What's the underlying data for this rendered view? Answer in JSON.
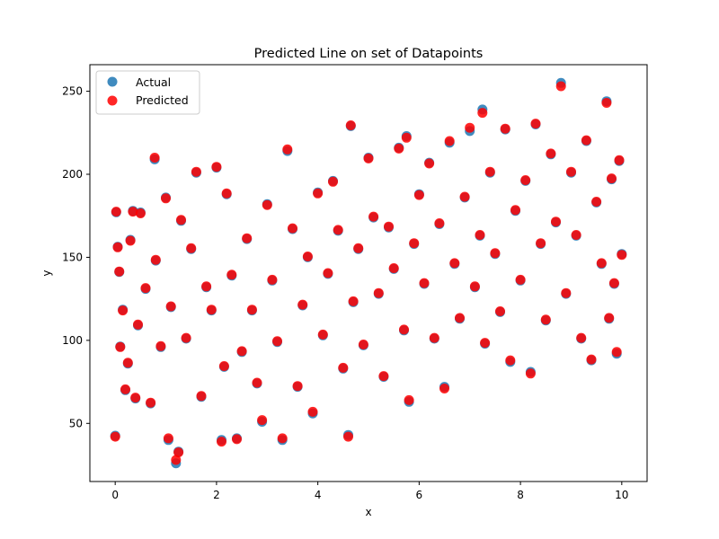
{
  "chart_data": {
    "type": "scatter",
    "title": "Predicted Line on set of Datapoints",
    "xlabel": "x",
    "ylabel": "y",
    "xlim": [
      -0.5,
      10.5
    ],
    "ylim": [
      15,
      266
    ],
    "x_ticks": [
      0,
      2,
      4,
      6,
      8,
      10
    ],
    "y_ticks": [
      50,
      100,
      150,
      200,
      250
    ],
    "grid": false,
    "legend_position": "top-left",
    "series": [
      {
        "name": "Actual",
        "color": "#1f77b4",
        "alpha": 0.85,
        "points": [
          [
            0.0,
            42.6
          ],
          [
            0.02,
            177.1
          ],
          [
            0.05,
            156.4
          ],
          [
            0.08,
            141.2
          ],
          [
            0.1,
            96.3
          ],
          [
            0.15,
            118.5
          ],
          [
            0.2,
            70.0
          ],
          [
            0.25,
            86.0
          ],
          [
            0.3,
            160.5
          ],
          [
            0.35,
            178.0
          ],
          [
            0.4,
            65.0
          ],
          [
            0.45,
            109.0
          ],
          [
            0.5,
            177.0
          ],
          [
            0.6,
            131.0
          ],
          [
            0.7,
            62.0
          ],
          [
            0.78,
            209.0
          ],
          [
            0.8,
            148.0
          ],
          [
            0.9,
            96.0
          ],
          [
            1.0,
            186.0
          ],
          [
            1.05,
            40.0
          ],
          [
            1.1,
            120.0
          ],
          [
            1.2,
            26.0
          ],
          [
            1.25,
            33.0
          ],
          [
            1.3,
            172.0
          ],
          [
            1.4,
            101.0
          ],
          [
            1.5,
            155.0
          ],
          [
            1.6,
            201.0
          ],
          [
            1.7,
            66.0
          ],
          [
            1.8,
            132.0
          ],
          [
            1.9,
            118.0
          ],
          [
            2.0,
            204.0
          ],
          [
            2.1,
            40.0
          ],
          [
            2.15,
            84.0
          ],
          [
            2.2,
            188.0
          ],
          [
            2.3,
            139.0
          ],
          [
            2.4,
            41.0
          ],
          [
            2.5,
            93.0
          ],
          [
            2.6,
            161.0
          ],
          [
            2.7,
            118.0
          ],
          [
            2.8,
            74.0
          ],
          [
            2.9,
            51.0
          ],
          [
            3.0,
            182.0
          ],
          [
            3.1,
            136.0
          ],
          [
            3.2,
            99.0
          ],
          [
            3.3,
            40.0
          ],
          [
            3.4,
            214.0
          ],
          [
            3.5,
            167.0
          ],
          [
            3.6,
            72.0
          ],
          [
            3.7,
            121.0
          ],
          [
            3.8,
            150.0
          ],
          [
            3.9,
            56.0
          ],
          [
            4.0,
            189.0
          ],
          [
            4.1,
            103.0
          ],
          [
            4.2,
            140.0
          ],
          [
            4.3,
            196.0
          ],
          [
            4.4,
            166.0
          ],
          [
            4.5,
            83.0
          ],
          [
            4.6,
            43.0
          ],
          [
            4.65,
            229.0
          ],
          [
            4.7,
            123.0
          ],
          [
            4.8,
            155.0
          ],
          [
            4.9,
            97.0
          ],
          [
            5.0,
            210.0
          ],
          [
            5.1,
            174.0
          ],
          [
            5.2,
            128.0
          ],
          [
            5.3,
            78.0
          ],
          [
            5.4,
            168.0
          ],
          [
            5.5,
            143.0
          ],
          [
            5.6,
            216.0
          ],
          [
            5.7,
            106.0
          ],
          [
            5.75,
            223.0
          ],
          [
            5.8,
            63.0
          ],
          [
            5.9,
            158.0
          ],
          [
            6.0,
            188.0
          ],
          [
            6.1,
            134.0
          ],
          [
            6.2,
            207.0
          ],
          [
            6.3,
            101.0
          ],
          [
            6.4,
            170.0
          ],
          [
            6.5,
            72.0
          ],
          [
            6.6,
            219.0
          ],
          [
            6.7,
            146.0
          ],
          [
            6.8,
            113.0
          ],
          [
            6.9,
            186.0
          ],
          [
            7.0,
            226.0
          ],
          [
            7.1,
            132.0
          ],
          [
            7.2,
            163.0
          ],
          [
            7.25,
            239.0
          ],
          [
            7.3,
            98.0
          ],
          [
            7.4,
            201.0
          ],
          [
            7.5,
            152.0
          ],
          [
            7.6,
            117.0
          ],
          [
            7.7,
            227.0
          ],
          [
            7.8,
            87.0
          ],
          [
            7.9,
            178.0
          ],
          [
            8.0,
            136.0
          ],
          [
            8.1,
            196.0
          ],
          [
            8.2,
            81.0
          ],
          [
            8.3,
            230.0
          ],
          [
            8.4,
            158.0
          ],
          [
            8.5,
            112.0
          ],
          [
            8.6,
            212.0
          ],
          [
            8.7,
            171.0
          ],
          [
            8.8,
            255.0
          ],
          [
            8.9,
            128.0
          ],
          [
            9.0,
            201.0
          ],
          [
            9.1,
            163.0
          ],
          [
            9.2,
            101.0
          ],
          [
            9.3,
            220.0
          ],
          [
            9.4,
            88.0
          ],
          [
            9.5,
            183.0
          ],
          [
            9.6,
            146.0
          ],
          [
            9.7,
            244.0
          ],
          [
            9.75,
            113.0
          ],
          [
            9.8,
            197.0
          ],
          [
            9.85,
            134.0
          ],
          [
            9.9,
            92.0
          ],
          [
            9.95,
            208.0
          ],
          [
            10.0,
            152.0
          ]
        ]
      },
      {
        "name": "Predicted",
        "color": "#ff0000",
        "alpha": 0.85,
        "points": [
          [
            0.0,
            42.0
          ],
          [
            0.02,
            177.5
          ],
          [
            0.05,
            156.0
          ],
          [
            0.08,
            141.5
          ],
          [
            0.1,
            96.0
          ],
          [
            0.15,
            118.0
          ],
          [
            0.2,
            70.5
          ],
          [
            0.25,
            86.5
          ],
          [
            0.3,
            160.0
          ],
          [
            0.35,
            177.5
          ],
          [
            0.4,
            65.5
          ],
          [
            0.45,
            109.5
          ],
          [
            0.5,
            176.5
          ],
          [
            0.6,
            131.5
          ],
          [
            0.7,
            62.5
          ],
          [
            0.78,
            210.0
          ],
          [
            0.8,
            148.5
          ],
          [
            0.9,
            96.5
          ],
          [
            1.0,
            185.5
          ],
          [
            1.05,
            41.0
          ],
          [
            1.1,
            120.5
          ],
          [
            1.2,
            28.0
          ],
          [
            1.25,
            32.5
          ],
          [
            1.3,
            172.5
          ],
          [
            1.4,
            101.5
          ],
          [
            1.5,
            155.5
          ],
          [
            1.6,
            201.5
          ],
          [
            1.7,
            66.5
          ],
          [
            1.8,
            132.5
          ],
          [
            1.9,
            118.5
          ],
          [
            2.0,
            204.5
          ],
          [
            2.1,
            39.0
          ],
          [
            2.15,
            84.5
          ],
          [
            2.2,
            188.5
          ],
          [
            2.3,
            139.5
          ],
          [
            2.4,
            40.5
          ],
          [
            2.5,
            93.5
          ],
          [
            2.6,
            161.5
          ],
          [
            2.7,
            118.5
          ],
          [
            2.8,
            74.5
          ],
          [
            2.9,
            52.0
          ],
          [
            3.0,
            181.5
          ],
          [
            3.1,
            136.5
          ],
          [
            3.2,
            99.5
          ],
          [
            3.3,
            41.0
          ],
          [
            3.4,
            215.0
          ],
          [
            3.5,
            167.5
          ],
          [
            3.6,
            72.5
          ],
          [
            3.7,
            121.5
          ],
          [
            3.8,
            150.5
          ],
          [
            3.9,
            57.0
          ],
          [
            4.0,
            188.5
          ],
          [
            4.1,
            103.5
          ],
          [
            4.2,
            140.5
          ],
          [
            4.3,
            195.5
          ],
          [
            4.4,
            166.5
          ],
          [
            4.5,
            83.5
          ],
          [
            4.6,
            42.0
          ],
          [
            4.65,
            229.5
          ],
          [
            4.7,
            123.5
          ],
          [
            4.8,
            155.5
          ],
          [
            4.9,
            97.5
          ],
          [
            5.0,
            209.5
          ],
          [
            5.1,
            174.5
          ],
          [
            5.2,
            128.5
          ],
          [
            5.3,
            78.5
          ],
          [
            5.4,
            168.5
          ],
          [
            5.5,
            143.5
          ],
          [
            5.6,
            215.5
          ],
          [
            5.7,
            106.5
          ],
          [
            5.75,
            222.0
          ],
          [
            5.8,
            64.0
          ],
          [
            5.9,
            158.5
          ],
          [
            6.0,
            187.5
          ],
          [
            6.1,
            134.5
          ],
          [
            6.2,
            206.5
          ],
          [
            6.3,
            101.5
          ],
          [
            6.4,
            170.5
          ],
          [
            6.5,
            71.0
          ],
          [
            6.6,
            220.0
          ],
          [
            6.7,
            146.5
          ],
          [
            6.8,
            113.5
          ],
          [
            6.9,
            186.5
          ],
          [
            7.0,
            228.0
          ],
          [
            7.1,
            132.5
          ],
          [
            7.2,
            163.5
          ],
          [
            7.25,
            237.0
          ],
          [
            7.3,
            98.5
          ],
          [
            7.4,
            201.5
          ],
          [
            7.5,
            152.5
          ],
          [
            7.6,
            117.5
          ],
          [
            7.7,
            227.5
          ],
          [
            7.8,
            88.0
          ],
          [
            7.9,
            178.5
          ],
          [
            8.0,
            136.5
          ],
          [
            8.1,
            196.5
          ],
          [
            8.2,
            80.0
          ],
          [
            8.3,
            230.5
          ],
          [
            8.4,
            158.5
          ],
          [
            8.5,
            112.5
          ],
          [
            8.6,
            212.5
          ],
          [
            8.7,
            171.5
          ],
          [
            8.8,
            253.0
          ],
          [
            8.9,
            128.5
          ],
          [
            9.0,
            201.5
          ],
          [
            9.1,
            163.5
          ],
          [
            9.2,
            101.5
          ],
          [
            9.3,
            220.5
          ],
          [
            9.4,
            88.5
          ],
          [
            9.5,
            183.5
          ],
          [
            9.6,
            146.5
          ],
          [
            9.7,
            243.0
          ],
          [
            9.75,
            113.5
          ],
          [
            9.8,
            197.5
          ],
          [
            9.85,
            134.5
          ],
          [
            9.9,
            93.0
          ],
          [
            9.95,
            208.5
          ],
          [
            10.0,
            151.5
          ]
        ]
      }
    ]
  }
}
